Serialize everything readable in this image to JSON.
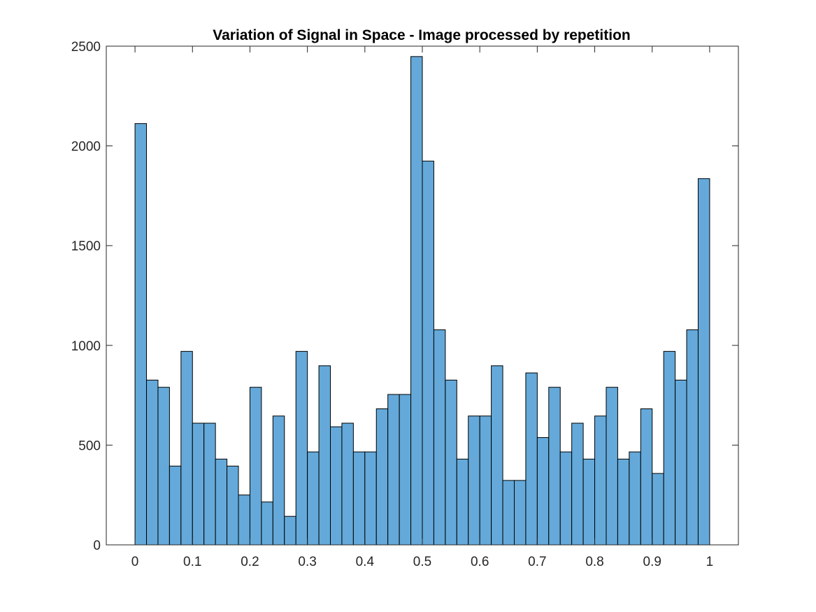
{
  "chart_data": {
    "type": "bar",
    "subtype": "histogram",
    "title": "Variation of Signal in Space - Image processed by repetition",
    "xlabel": "",
    "ylabel": "",
    "xlim": [
      -0.05,
      1.05
    ],
    "ylim": [
      0,
      2500
    ],
    "bin_edges_start": 0,
    "bin_width": 0.02,
    "values": [
      2112,
      826,
      790,
      395,
      970,
      610,
      610,
      430,
      395,
      250,
      790,
      215,
      646,
      143,
      970,
      466,
      898,
      592,
      610,
      466,
      466,
      682,
      754,
      754,
      2448,
      1924,
      1078,
      826,
      430,
      646,
      646,
      898,
      323,
      323,
      862,
      538,
      790,
      466,
      610,
      430,
      646,
      790,
      430,
      466,
      682,
      358,
      970,
      826,
      1078,
      1836
    ],
    "x_ticks": [
      "0",
      "0.1",
      "0.2",
      "0.3",
      "0.4",
      "0.5",
      "0.6",
      "0.7",
      "0.8",
      "0.9",
      "1"
    ],
    "y_ticks": [
      "0",
      "500",
      "1000",
      "1500",
      "2000",
      "2500"
    ],
    "bar_color": "#64a9d9",
    "edge_color": "#000000",
    "grid": false,
    "legend": "none",
    "box": true
  }
}
